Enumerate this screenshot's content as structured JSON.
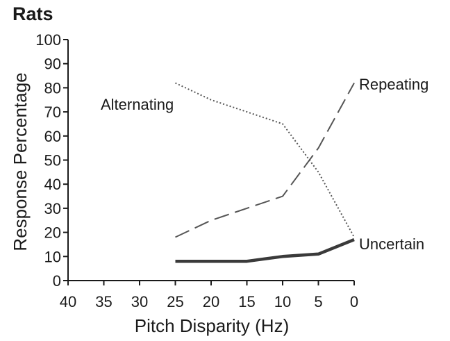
{
  "chart_data": {
    "type": "line",
    "title": "Rats",
    "xlabel": "Pitch Disparity (Hz)",
    "ylabel": "Response Percentage",
    "xlim": [
      40,
      0
    ],
    "ylim": [
      0,
      100
    ],
    "x_ticks": [
      "40",
      "35",
      "30",
      "25",
      "20",
      "15",
      "10",
      "5",
      "0"
    ],
    "y_ticks": [
      "0",
      "10",
      "20",
      "30",
      "40",
      "50",
      "60",
      "70",
      "80",
      "90",
      "100"
    ],
    "grid": false,
    "legend": "none",
    "series": [
      {
        "name": "Alternating",
        "style": "dotted",
        "color": "#555555",
        "x": [
          25,
          20,
          15,
          10,
          5,
          0
        ],
        "y": [
          82,
          75,
          70,
          65,
          45,
          18
        ]
      },
      {
        "name": "Repeating",
        "style": "dashed",
        "color": "#555555",
        "x": [
          25,
          20,
          15,
          10,
          5,
          0
        ],
        "y": [
          18,
          25,
          30,
          35,
          55,
          82
        ]
      },
      {
        "name": "Uncertain",
        "style": "solid-thick",
        "color": "#3a3a3a",
        "x": [
          25,
          20,
          15,
          10,
          5,
          0
        ],
        "y": [
          8,
          8,
          8,
          10,
          11,
          17
        ]
      }
    ]
  }
}
